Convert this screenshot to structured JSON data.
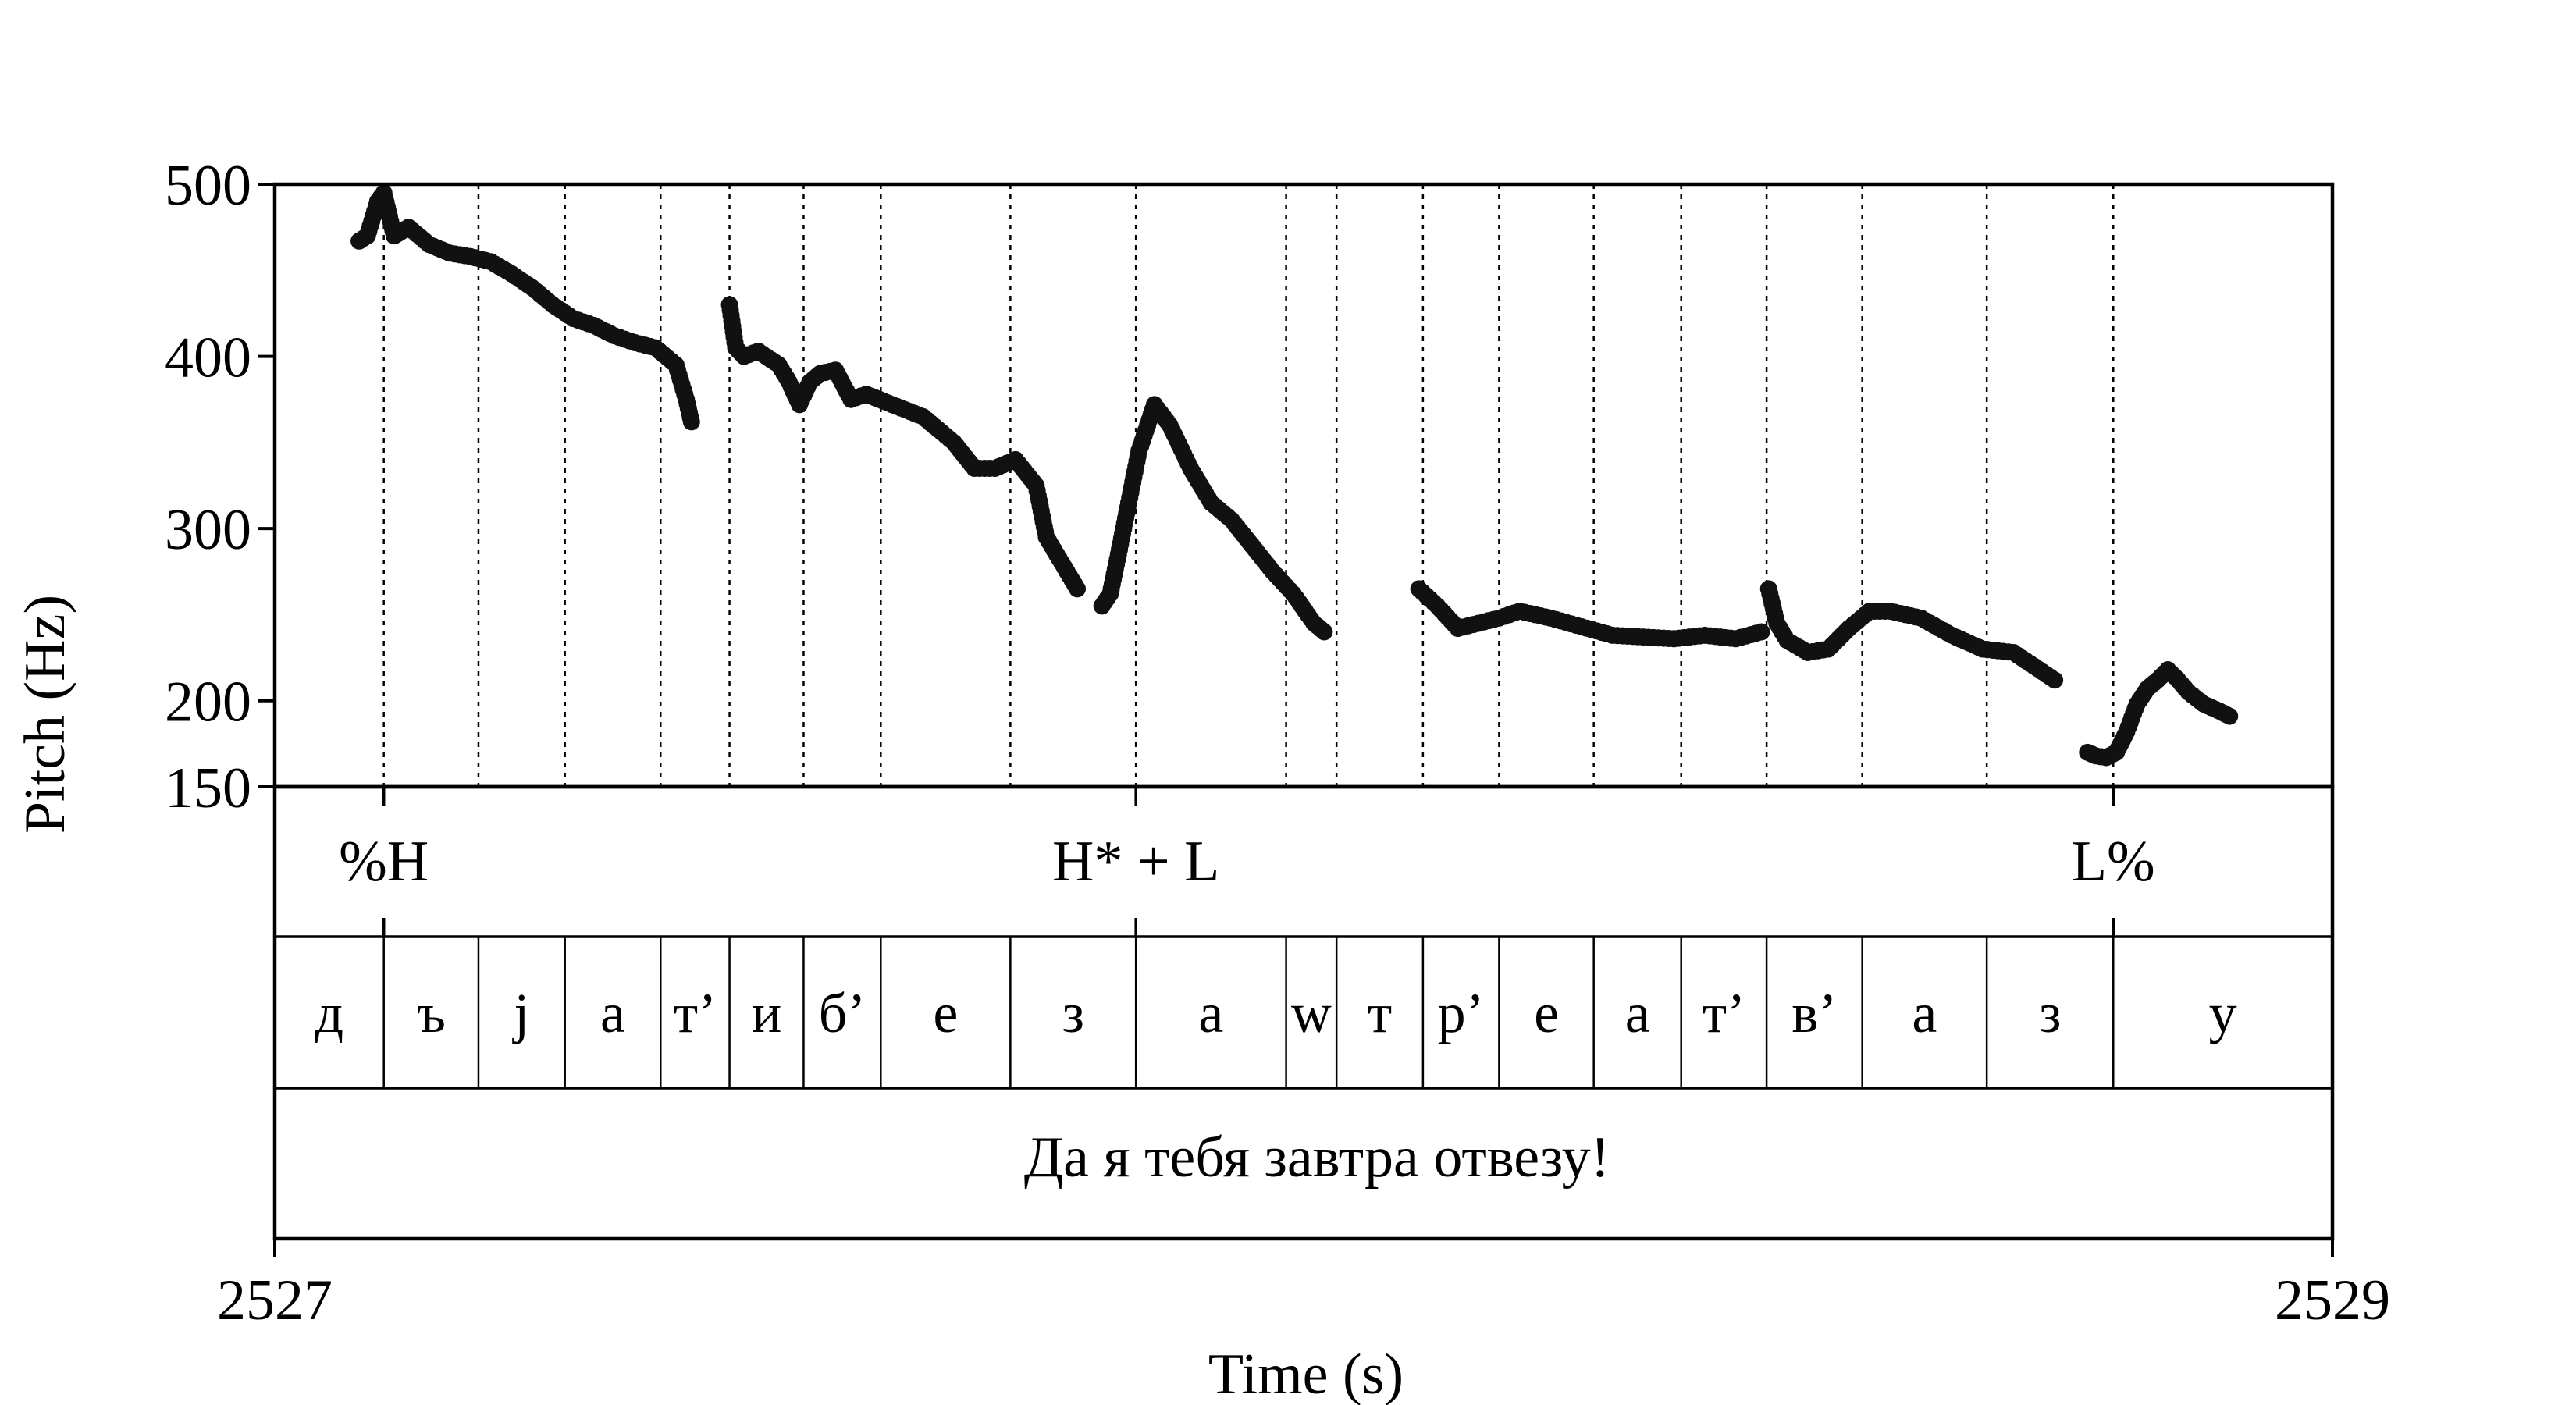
{
  "chart_data": {
    "type": "scatter",
    "xlabel": "Time (s)",
    "ylabel": "Pitch (Hz)",
    "xlim": [
      2527,
      2529
    ],
    "ylim": [
      150,
      500
    ],
    "x_ticks": [
      "2527",
      "2529"
    ],
    "y_ticks": [
      {
        "value": 500,
        "label": "500"
      },
      {
        "value": 400,
        "label": "400"
      },
      {
        "value": 300,
        "label": "300"
      },
      {
        "value": 200,
        "label": "200"
      },
      {
        "value": 150,
        "label": "150"
      }
    ],
    "grid": false,
    "segment_boundaries": [
      2527.106,
      2527.198,
      2527.282,
      2527.375,
      2527.442,
      2527.514,
      2527.589,
      2527.715,
      2527.837,
      2527.983,
      2528.032,
      2528.116,
      2528.19,
      2528.282,
      2528.367,
      2528.45,
      2528.543,
      2528.664,
      2528.787
    ],
    "pitch_contours": [
      {
        "x": [
          2527.082,
          2527.09,
          2527.1,
          2527.106,
          2527.116,
          2527.13,
          2527.15,
          2527.17,
          2527.19,
          2527.21,
          2527.23,
          2527.25,
          2527.27,
          2527.29,
          2527.31,
          2527.33,
          2527.35,
          2527.37,
          2527.39,
          2527.4,
          2527.405
        ],
        "y": [
          467,
          470,
          490,
          495,
          470,
          475,
          465,
          460,
          458,
          455,
          448,
          440,
          430,
          422,
          418,
          412,
          408,
          405,
          395,
          375,
          362
        ]
      },
      {
        "x": [
          2527.442,
          2527.448,
          2527.456,
          2527.47,
          2527.49,
          2527.5,
          2527.51,
          2527.52,
          2527.53,
          2527.545,
          2527.56,
          2527.575,
          2527.6,
          2527.63,
          2527.66,
          2527.68,
          2527.7,
          2527.72,
          2527.74,
          2527.75,
          2527.76,
          2527.77,
          2527.78
        ],
        "y": [
          430,
          405,
          400,
          403,
          395,
          385,
          372,
          385,
          390,
          392,
          375,
          378,
          372,
          365,
          350,
          335,
          335,
          340,
          325,
          295,
          285,
          275,
          265
        ]
      },
      {
        "x": [
          2527.804,
          2527.812,
          2527.82,
          2527.83,
          2527.84,
          2527.855,
          2527.87,
          2527.89,
          2527.91,
          2527.93,
          2527.95,
          2527.97,
          2527.99,
          2528.01,
          2528.02
        ],
        "y": [
          255,
          262,
          285,
          315,
          345,
          372,
          360,
          335,
          315,
          305,
          290,
          275,
          262,
          245,
          240
        ]
      },
      {
        "x": [
          2528.112,
          2528.13,
          2528.15,
          2528.17,
          2528.19,
          2528.21,
          2528.24,
          2528.27,
          2528.3,
          2528.33,
          2528.36,
          2528.39,
          2528.42,
          2528.445
        ],
        "y": [
          265,
          255,
          242,
          245,
          248,
          252,
          248,
          243,
          238,
          237,
          236,
          238,
          236,
          240
        ]
      },
      {
        "x": [
          2528.452,
          2528.46,
          2528.47,
          2528.49,
          2528.51,
          2528.53,
          2528.55,
          2528.57,
          2528.6,
          2528.63,
          2528.66,
          2528.69,
          2528.71,
          2528.73
        ],
        "y": [
          265,
          245,
          235,
          228,
          230,
          242,
          252,
          252,
          248,
          238,
          230,
          228,
          220,
          212
        ]
      },
      {
        "x": [
          2528.762,
          2528.77,
          2528.78,
          2528.79,
          2528.8,
          2528.81,
          2528.82,
          2528.83,
          2528.84,
          2528.85,
          2528.86,
          2528.875,
          2528.89,
          2528.9
        ],
        "y": [
          170,
          168,
          167,
          170,
          182,
          198,
          207,
          212,
          218,
          212,
          205,
          198,
          194,
          191
        ]
      }
    ],
    "tiers": [
      {
        "name": "tones",
        "labels": [
          {
            "x": 2527.106,
            "text": "%H"
          },
          {
            "x": 2527.837,
            "text": "H* + L"
          },
          {
            "x": 2528.787,
            "text": "L%"
          }
        ]
      },
      {
        "name": "phones",
        "segments": [
          "д",
          "ъ",
          "j",
          "а",
          "т’",
          "и",
          "б’",
          "е",
          "з",
          "а",
          "w",
          "т",
          "р’",
          "е",
          "а",
          "т’",
          "в’",
          "а",
          "з",
          "у"
        ]
      },
      {
        "name": "sentence",
        "text": "Да я тебя завтра отвезу!"
      }
    ]
  }
}
